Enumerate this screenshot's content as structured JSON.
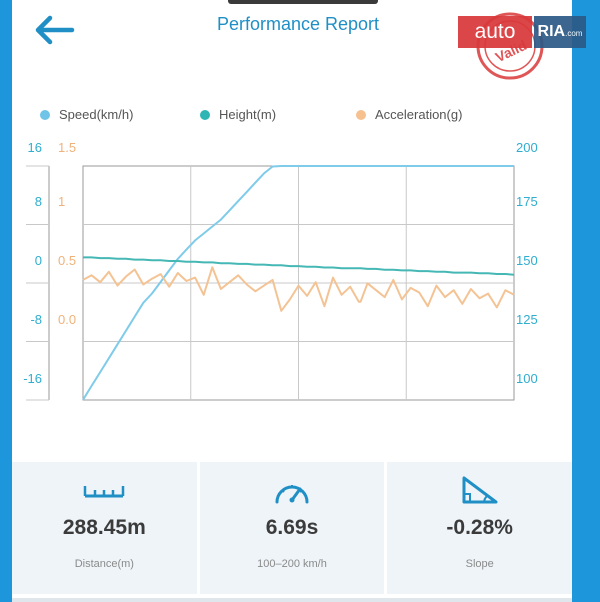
{
  "header": {
    "title": "Performance Report",
    "back_icon": "arrow-left-icon"
  },
  "watermark": {
    "brand_left": "auto",
    "brand_right": "RIA",
    "brand_suffix": ".com",
    "seal_text": "Verified"
  },
  "legend": [
    {
      "label": "Speed(km/h)",
      "color": "#6fc4e8"
    },
    {
      "label": "Height(m)",
      "color": "#2fb6b4"
    },
    {
      "label": "Acceleration(g)",
      "color": "#f6c08f"
    }
  ],
  "colors": {
    "accent": "#1f8fc5",
    "frame": "#1d96db",
    "speed": "#7fcbea",
    "height": "#45b8b5",
    "acceleration": "#f4c394",
    "stat_bg": "#eef4f8"
  },
  "chart_data": {
    "type": "line",
    "axes": {
      "height_ticks": [
        "16",
        "8",
        "0",
        "-8",
        "-16"
      ],
      "accel_ticks": [
        "1.5",
        "1",
        "0.5",
        "0.0"
      ],
      "speed_ticks": [
        "200",
        "175",
        "150",
        "125",
        "100"
      ],
      "speed_range": [
        100,
        200
      ],
      "height_range": [
        -16,
        16
      ],
      "accel_range": [
        -0.5,
        1.5
      ],
      "grid": true
    },
    "x": [
      0,
      2,
      4,
      6,
      8,
      10,
      12,
      14,
      16,
      18,
      20,
      22,
      24,
      26,
      28,
      30,
      32,
      34,
      36,
      38,
      40,
      42,
      44,
      46,
      48,
      50,
      52,
      54,
      56,
      58,
      60,
      62,
      64,
      64.4,
      66,
      68,
      70,
      72,
      74,
      76,
      78,
      80,
      82,
      84,
      86,
      88,
      90,
      92,
      94,
      96,
      98,
      100
    ],
    "series": [
      {
        "name": "Speed(km/h)",
        "key": "speed",
        "values": [
          91,
          97,
          103,
          109,
          115,
          121,
          127,
          133,
          137,
          142,
          147,
          152,
          156,
          160,
          163,
          166,
          169,
          173,
          177,
          181,
          185,
          189,
          192,
          195,
          197,
          199,
          200,
          201,
          202,
          203,
          204,
          205,
          205,
          205,
          206,
          207,
          208,
          209,
          210,
          211,
          212,
          212,
          213,
          213,
          214,
          214,
          214,
          215,
          215,
          215,
          215,
          215
        ]
      },
      {
        "name": "Height(m)",
        "key": "height",
        "values": [
          0.5,
          0.5,
          0.4,
          0.4,
          0.3,
          0.3,
          0.2,
          0.2,
          0.1,
          0.1,
          0.0,
          0.0,
          -0.1,
          -0.1,
          -0.2,
          -0.2,
          -0.3,
          -0.3,
          -0.4,
          -0.4,
          -0.5,
          -0.5,
          -0.6,
          -0.6,
          -0.7,
          -0.7,
          -0.8,
          -0.8,
          -0.9,
          -0.9,
          -1.0,
          -1.0,
          -1.0,
          -1.0,
          -1.1,
          -1.1,
          -1.2,
          -1.2,
          -1.3,
          -1.3,
          -1.4,
          -1.4,
          -1.5,
          -1.5,
          -1.6,
          -1.6,
          -1.6,
          -1.7,
          -1.7,
          -1.8,
          -1.8,
          -1.9
        ]
      },
      {
        "name": "Acceleration(g)",
        "key": "accel",
        "values": [
          0.35,
          0.39,
          0.33,
          0.42,
          0.3,
          0.38,
          0.44,
          0.31,
          0.36,
          0.4,
          0.29,
          0.41,
          0.34,
          0.37,
          0.22,
          0.46,
          0.27,
          0.33,
          0.39,
          0.31,
          0.25,
          0.3,
          0.35,
          0.08,
          0.18,
          0.3,
          0.21,
          0.33,
          0.12,
          0.37,
          0.22,
          0.29,
          0.16,
          0.16,
          0.32,
          0.26,
          0.2,
          0.35,
          0.18,
          0.28,
          0.24,
          0.12,
          0.3,
          0.2,
          0.26,
          0.14,
          0.27,
          0.19,
          0.23,
          0.11,
          0.26,
          0.22
        ]
      }
    ]
  },
  "stats": [
    {
      "icon": "ruler-icon",
      "value": "288.45m",
      "label": "Distance(m)"
    },
    {
      "icon": "speedometer-icon",
      "value": "6.69s",
      "label": "100–200 km/h"
    },
    {
      "icon": "slope-icon",
      "value": "-0.28%",
      "label": "Slope"
    }
  ]
}
